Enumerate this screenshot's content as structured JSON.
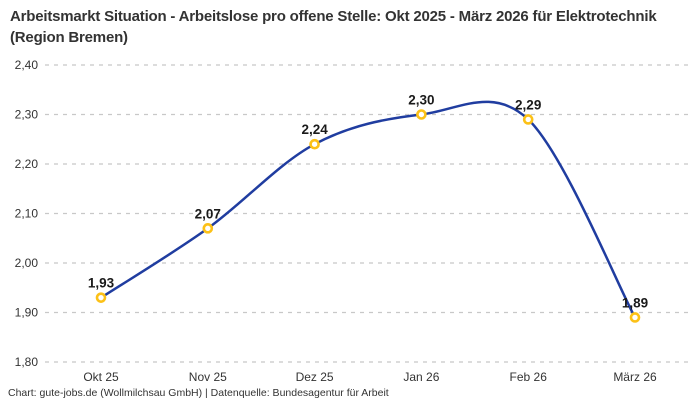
{
  "title": "Arbeitsmarkt Situation - Arbeitslose pro offene Stelle: Okt 2025 - März 2026 für Elektrotechnik (Region Bremen)",
  "footer": "Chart: gute-jobs.de (Wollmilchsau GmbH) | Datenquelle: Bundesagentur für Arbeit",
  "chart_data": {
    "type": "line",
    "title": "Arbeitsmarkt Situation - Arbeitslose pro offene Stelle: Okt 2025 - März 2026 für Elektrotechnik (Region Bremen)",
    "categories": [
      "Okt 25",
      "Nov 25",
      "Dez 25",
      "Jan 26",
      "Feb 26",
      "März 26"
    ],
    "values": [
      1.93,
      2.07,
      2.24,
      2.3,
      2.29,
      1.89
    ],
    "value_labels": [
      "1,93",
      "2,07",
      "2,24",
      "2,30",
      "2,29",
      "1,89"
    ],
    "xlabel": "",
    "ylabel": "",
    "ylim": [
      1.8,
      2.4
    ],
    "ytick_values": [
      1.8,
      1.9,
      2.0,
      2.1,
      2.2,
      2.3,
      2.4
    ],
    "ytick_labels": [
      "1,80",
      "1,90",
      "2,00",
      "2,10",
      "2,20",
      "2,30",
      "2,40"
    ],
    "grid": "horizontal-dashed",
    "legend": "none",
    "colors": {
      "line": "#203da0",
      "marker_ring": "#fcc117",
      "marker_fill": "#ffffff",
      "grid": "#c8c8c8",
      "tick_text": "#333333",
      "value_label_text": "#1a1a1a",
      "background": "#ffffff"
    }
  }
}
